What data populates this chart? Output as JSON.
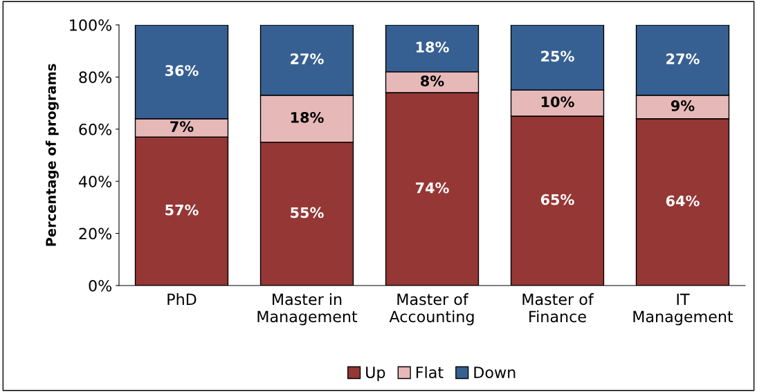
{
  "chart_data": {
    "type": "bar",
    "stacked": true,
    "ylabel": "Percentage of programs",
    "categories": [
      "PhD",
      "Master in\nManagement",
      "Master of\nAccounting",
      "Master of\nFinance",
      "IT\nManagement"
    ],
    "series": [
      {
        "name": "Up",
        "color": "#953735",
        "values": [
          57,
          55,
          74,
          65,
          64
        ],
        "value_labels": [
          "57%",
          "55%",
          "74%",
          "65%",
          "64%"
        ]
      },
      {
        "name": "Flat",
        "color": "#e6b9b8",
        "values": [
          7,
          18,
          8,
          10,
          9
        ],
        "value_labels": [
          "7%",
          "18%",
          "8%",
          "10%",
          "9%"
        ]
      },
      {
        "name": "Down",
        "color": "#376092",
        "values": [
          36,
          27,
          18,
          25,
          27
        ],
        "value_labels": [
          "36%",
          "27%",
          "18%",
          "25%",
          "27%"
        ]
      }
    ],
    "ylim": [
      0,
      100
    ],
    "yticks": [
      {
        "value": 0,
        "label": "0%"
      },
      {
        "value": 20,
        "label": "20%"
      },
      {
        "value": 40,
        "label": "40%"
      },
      {
        "value": 60,
        "label": "60%"
      },
      {
        "value": 80,
        "label": "80%"
      },
      {
        "value": 100,
        "label": "100%"
      }
    ],
    "grid": false,
    "legend": "bottom"
  }
}
